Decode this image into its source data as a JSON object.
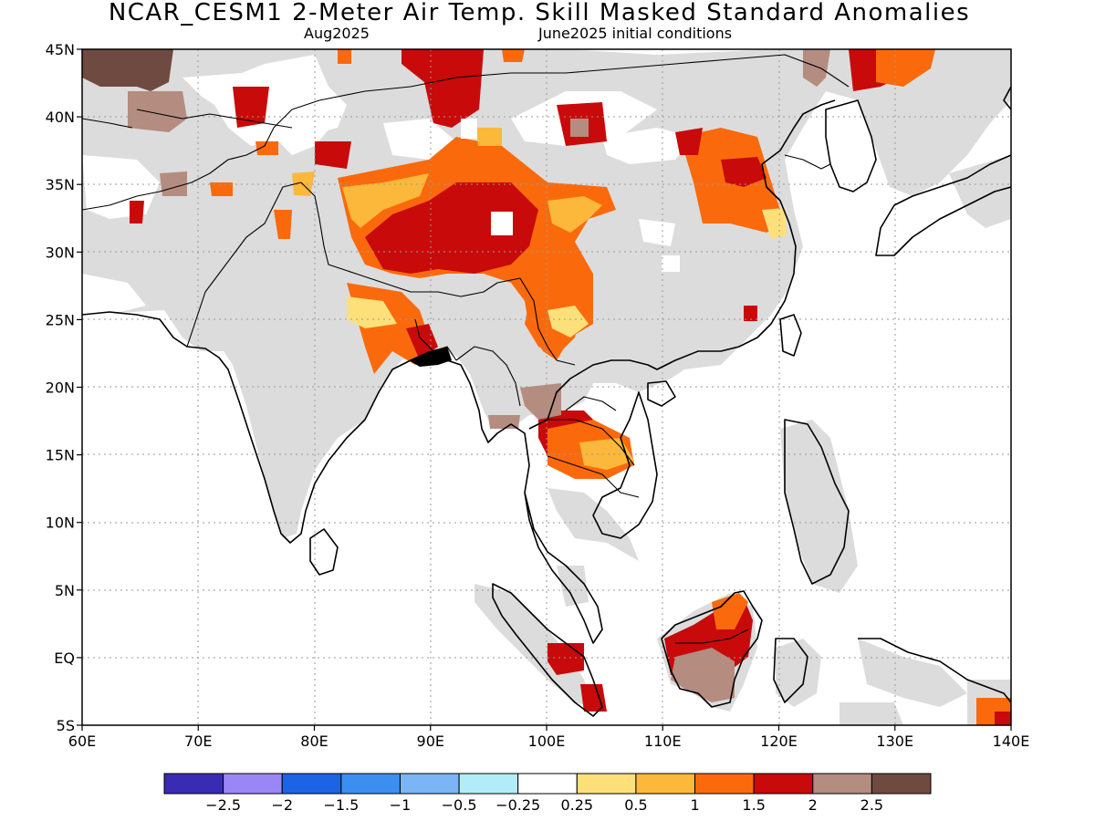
{
  "title": "NCAR_CESM1 2-Meter Air Temp. Skill Masked Standard Anomalies",
  "subtitle_left": "Aug2025",
  "subtitle_right": "June2025 initial conditions",
  "map": {
    "lon_range": [
      60,
      140
    ],
    "lat_range": [
      -5,
      45
    ],
    "lon_ticks": [
      "60E",
      "70E",
      "80E",
      "90E",
      "100E",
      "110E",
      "120E",
      "130E",
      "140E"
    ],
    "lat_ticks": [
      "5S",
      "EQ",
      "5N",
      "10N",
      "15N",
      "20N",
      "25N",
      "30N",
      "35N",
      "40N",
      "45N"
    ],
    "grid": "dotted",
    "mask_color": "#dcdcdc",
    "land_color": "#ffffff",
    "coast_color": "#000000"
  },
  "colorbar": {
    "colors": [
      "#3a2bb5",
      "#9a87f5",
      "#1c64e6",
      "#3c8ff0",
      "#7ab5f5",
      "#b2ecf8",
      "#ffffff",
      "#fde07a",
      "#fbb83a",
      "#fa6a0c",
      "#c80a0a",
      "#b48c80",
      "#6e4a40"
    ],
    "labels": [
      "-2.5",
      "-2",
      "-1.5",
      "-1",
      "-0.5",
      "-0.25",
      "0.25",
      "0.5",
      "1",
      "1.5",
      "2",
      "2.5"
    ]
  }
}
